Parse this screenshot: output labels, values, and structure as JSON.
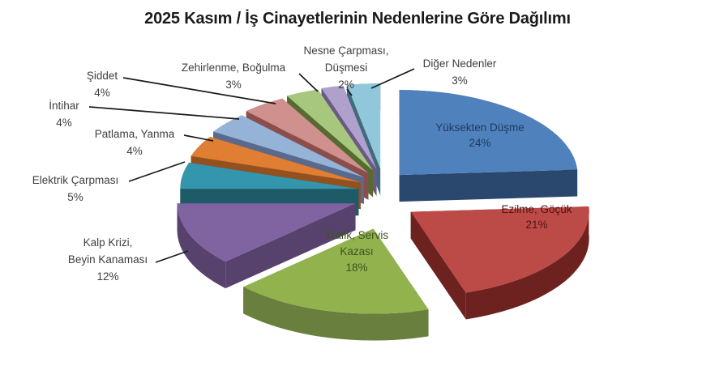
{
  "title": "2025 Kasım / İş Cinayetlerinin Nedenlerine Göre Dağılımı",
  "colors": {
    "background": "#FFFFFF",
    "title_text": "#1A1A1A",
    "outside_label_text": "#3F3F3F",
    "leader_line": "#1A1A1A"
  },
  "chart_data": {
    "type": "pie",
    "style": "3d-exploded",
    "title": "2025 Kasım / İş Cinayetlerinin Nedenlerine Göre Dağılımı",
    "unit": "%",
    "start_angle_deg": 0,
    "direction": "clockwise",
    "legend": "none",
    "categories": [
      "Yüksekten Düşme",
      "Ezilme, Göçük",
      "Trafik, Servis Kazası",
      "Kalp Krizi, Beyin Kanaması",
      "Elektrik Çarpması",
      "Patlama, Yanma",
      "İntihar",
      "Şiddet",
      "Zehirlenme, Boğulma",
      "Nesne Çarpması, Düşmesi",
      "Diğer Nedenler"
    ],
    "values": [
      24,
      21,
      18,
      12,
      5,
      4,
      4,
      4,
      3,
      2,
      3
    ],
    "slices": [
      {
        "label": "Yüksekten Düşme",
        "value": 24,
        "pct_label": "24%",
        "lines": [
          "Yüksekten Düşme"
        ],
        "color": "#4F81BD",
        "side_color": "#2A486E",
        "text_color": "#1D3B5E",
        "label_placement": "inside"
      },
      {
        "label": "Ezilme, Göçük",
        "value": 21,
        "pct_label": "21%",
        "lines": [
          "Ezilme, Göçük"
        ],
        "color": "#BC4B48",
        "side_color": "#6E2220",
        "text_color": "#4E1512",
        "label_placement": "inside"
      },
      {
        "label": "Trafik, Servis Kazası",
        "value": 18,
        "pct_label": "18%",
        "lines": [
          "Trafik, Servis",
          "Kazası"
        ],
        "color": "#92B24E",
        "side_color": "#697F3D",
        "text_color": "#3E5320",
        "label_placement": "inside"
      },
      {
        "label": "Kalp Krizi, Beyin Kanaması",
        "value": 12,
        "pct_label": "12%",
        "lines": [
          "Kalp Krizi,",
          "Beyin Kanaması"
        ],
        "color": "#8064A2",
        "side_color": "#57426E",
        "label_placement": "outside"
      },
      {
        "label": "Elektrik Çarpması",
        "value": 5,
        "pct_label": "5%",
        "lines": [
          "Elektrik Çarpması"
        ],
        "color": "#3496AC",
        "side_color": "#1E5A68",
        "label_placement": "outside"
      },
      {
        "label": "Patlama, Yanma",
        "value": 4,
        "pct_label": "4%",
        "lines": [
          "Patlama, Yanma"
        ],
        "color": "#E07E33",
        "side_color": "#94511F",
        "label_placement": "outside"
      },
      {
        "label": "İntihar",
        "value": 4,
        "pct_label": "4%",
        "lines": [
          "İntihar"
        ],
        "color": "#95B3D7",
        "side_color": "#5A6A8C",
        "label_placement": "outside"
      },
      {
        "label": "Şiddet",
        "value": 4,
        "pct_label": "4%",
        "lines": [
          "Şiddet"
        ],
        "color": "#D0908E",
        "side_color": "#8A4F4D",
        "label_placement": "outside"
      },
      {
        "label": "Zehirlenme, Boğulma",
        "value": 3,
        "pct_label": "3%",
        "lines": [
          "Zehirlenme, Boğulma"
        ],
        "color": "#A8C77E",
        "side_color": "#566B31",
        "label_placement": "outside"
      },
      {
        "label": "Nesne Çarpması, Düşmesi",
        "value": 2,
        "pct_label": "2%",
        "lines": [
          "Nesne Çarpması,",
          "Düşmesi"
        ],
        "color": "#AFA0CC",
        "side_color": "#6A5A85",
        "label_placement": "outside"
      },
      {
        "label": "Diğer Nedenler",
        "value": 3,
        "pct_label": "3%",
        "lines": [
          "Diğer Nedenler"
        ],
        "color": "#90C7DB",
        "side_color": "#406B7D",
        "label_placement": "outside"
      }
    ]
  }
}
